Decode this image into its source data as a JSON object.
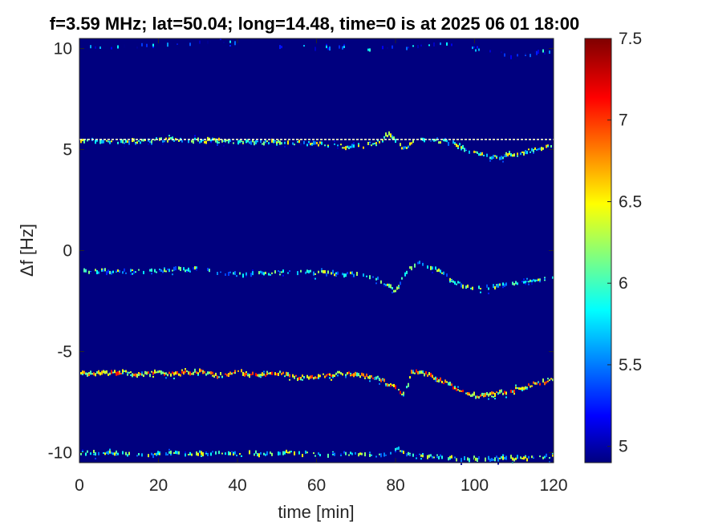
{
  "chart_data": {
    "type": "heatmap",
    "title": "f=3.59 MHz;  lat=50.04; long=14.48, time=0 is at 2025 06 01 18:00",
    "xlabel": "time [min]",
    "ylabel": "Δf [Hz]",
    "xlim": [
      0,
      120
    ],
    "ylim": [
      -10.5,
      10.5
    ],
    "x_ticks": [
      "0",
      "20",
      "40",
      "60",
      "80",
      "100",
      "120"
    ],
    "y_ticks": [
      "-10",
      "-5",
      "0",
      "5",
      "10"
    ],
    "colormap": "jet",
    "background_color": "#00007f",
    "colorbar": {
      "range": [
        4.9,
        7.5
      ],
      "ticks": [
        "5",
        "5.5",
        "6",
        "6.5",
        "7",
        "7.5"
      ]
    },
    "reference_line": {
      "y": 5.5,
      "color": "#ffffcc"
    },
    "traces": [
      {
        "name": "",
        "points": [
          [
            0,
            10
          ],
          [
            10,
            10.1
          ],
          [
            25,
            10.2
          ],
          [
            35,
            10.4
          ],
          [
            50,
            10.1
          ],
          [
            70,
            10
          ],
          [
            80,
            10
          ],
          [
            90,
            10.3
          ],
          [
            100,
            10
          ],
          [
            110,
            9.6
          ],
          [
            120,
            9.9
          ]
        ],
        "intensity": 5.4,
        "density": 0.25
      },
      {
        "name": "",
        "points": [
          [
            0,
            5.45
          ],
          [
            10,
            5.35
          ],
          [
            20,
            5.5
          ],
          [
            30,
            5.45
          ],
          [
            40,
            5.4
          ],
          [
            50,
            5.35
          ],
          [
            60,
            5.3
          ],
          [
            70,
            5.1
          ],
          [
            75,
            5.3
          ],
          [
            78,
            5.8
          ],
          [
            82,
            5.0
          ],
          [
            85,
            5.5
          ],
          [
            90,
            5.45
          ],
          [
            95,
            5.3
          ],
          [
            100,
            4.8
          ],
          [
            105,
            4.6
          ],
          [
            110,
            4.8
          ],
          [
            115,
            5.0
          ],
          [
            120,
            5.2
          ]
        ],
        "intensity": 6.1,
        "density": 0.75
      },
      {
        "name": "",
        "points": [
          [
            0,
            -1
          ],
          [
            10,
            -1.05
          ],
          [
            20,
            -1
          ],
          [
            30,
            -0.9
          ],
          [
            40,
            -1.2
          ],
          [
            50,
            -1.1
          ],
          [
            60,
            -1.1
          ],
          [
            70,
            -1.2
          ],
          [
            75,
            -1.4
          ],
          [
            80,
            -2.0
          ],
          [
            82,
            -1.2
          ],
          [
            85,
            -0.6
          ],
          [
            90,
            -0.9
          ],
          [
            95,
            -1.6
          ],
          [
            100,
            -1.9
          ],
          [
            105,
            -1.8
          ],
          [
            110,
            -1.6
          ],
          [
            115,
            -1.5
          ],
          [
            120,
            -1.3
          ]
        ],
        "intensity": 5.9,
        "density": 0.65
      },
      {
        "name": "",
        "points": [
          [
            0,
            -6.05
          ],
          [
            5,
            -6.1
          ],
          [
            10,
            -6.0
          ],
          [
            15,
            -6.15
          ],
          [
            20,
            -6.05
          ],
          [
            25,
            -6.1
          ],
          [
            30,
            -6.0
          ],
          [
            35,
            -6.2
          ],
          [
            40,
            -6.0
          ],
          [
            45,
            -6.2
          ],
          [
            50,
            -6.05
          ],
          [
            55,
            -6.3
          ],
          [
            60,
            -6.25
          ],
          [
            65,
            -6.1
          ],
          [
            70,
            -6.15
          ],
          [
            75,
            -6.3
          ],
          [
            80,
            -6.8
          ],
          [
            82,
            -7.2
          ],
          [
            84,
            -6.0
          ],
          [
            88,
            -6.1
          ],
          [
            92,
            -6.5
          ],
          [
            96,
            -6.9
          ],
          [
            100,
            -7.2
          ],
          [
            105,
            -7.1
          ],
          [
            110,
            -6.9
          ],
          [
            115,
            -6.6
          ],
          [
            120,
            -6.4
          ]
        ],
        "intensity": 6.6,
        "density": 0.95
      },
      {
        "name": "",
        "points": [
          [
            0,
            -10.0
          ],
          [
            10,
            -10.05
          ],
          [
            20,
            -10.1
          ],
          [
            30,
            -10.0
          ],
          [
            40,
            -10.1
          ],
          [
            50,
            -10.0
          ],
          [
            60,
            -10.1
          ],
          [
            70,
            -10.05
          ],
          [
            78,
            -10.2
          ],
          [
            80,
            -9.8
          ],
          [
            84,
            -10.2
          ],
          [
            90,
            -10.2
          ],
          [
            95,
            -10.3
          ],
          [
            110,
            -10.3
          ],
          [
            120,
            -10.2
          ]
        ],
        "intensity": 6.0,
        "density": 0.6
      }
    ]
  }
}
